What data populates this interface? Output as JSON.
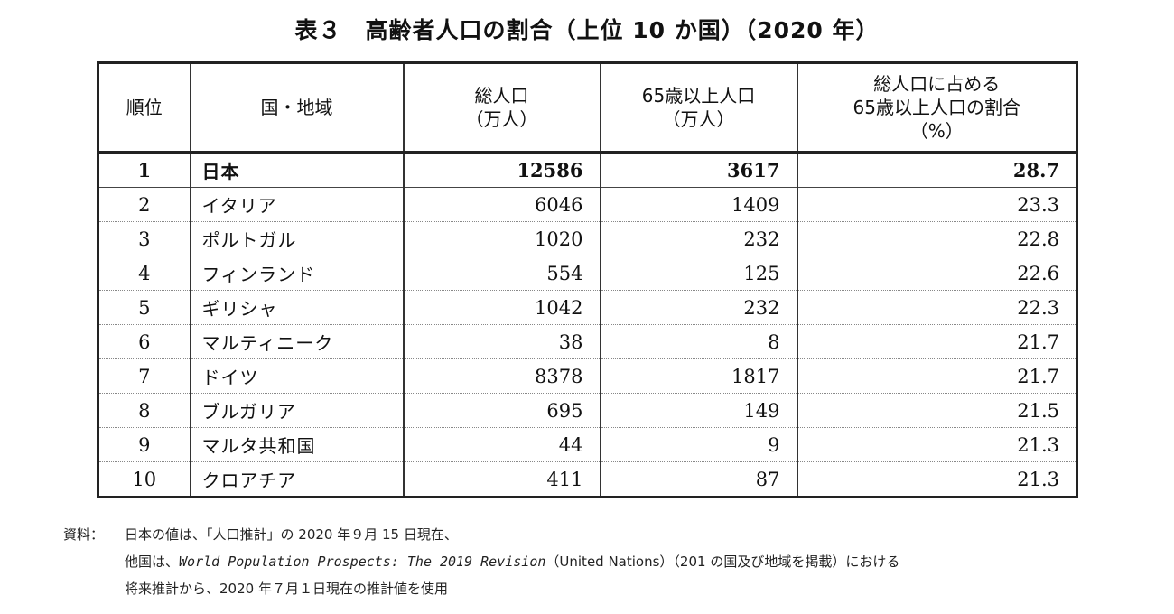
{
  "title": "表３　高齢者人口の割合（上位 10 か国）（2020 年）",
  "table": {
    "headers": {
      "rank": "順位",
      "country": "国・地域",
      "total_line1": "総人口",
      "total_line2": "（万人）",
      "elderly_line1": "65歳以上人口",
      "elderly_line2": "（万人）",
      "share_line1": "総人口に占める",
      "share_line2": "65歳以上人口の割合",
      "share_line3": "（%）"
    },
    "rows": [
      {
        "rank": "1",
        "country": "日本",
        "total": "12586",
        "elderly": "3617",
        "share": "28.7"
      },
      {
        "rank": "2",
        "country": "イタリア",
        "total": "6046",
        "elderly": "1409",
        "share": "23.3"
      },
      {
        "rank": "3",
        "country": "ポルトガル",
        "total": "1020",
        "elderly": "232",
        "share": "22.8"
      },
      {
        "rank": "4",
        "country": "フィンランド",
        "total": "554",
        "elderly": "125",
        "share": "22.6"
      },
      {
        "rank": "5",
        "country": "ギリシャ",
        "total": "1042",
        "elderly": "232",
        "share": "22.3"
      },
      {
        "rank": "6",
        "country": "マルティニーク",
        "total": "38",
        "elderly": "8",
        "share": "21.7"
      },
      {
        "rank": "7",
        "country": "ドイツ",
        "total": "8378",
        "elderly": "1817",
        "share": "21.7"
      },
      {
        "rank": "8",
        "country": "ブルガリア",
        "total": "695",
        "elderly": "149",
        "share": "21.5"
      },
      {
        "rank": "9",
        "country": "マルタ共和国",
        "total": "44",
        "elderly": "9",
        "share": "21.3"
      },
      {
        "rank": "10",
        "country": "クロアチア",
        "total": "411",
        "elderly": "87",
        "share": "21.3"
      }
    ]
  },
  "source": {
    "label": "資料：",
    "line1": "日本の値は、「人口推計」の 2020 年９月 15 日現在、",
    "line2_prefix": "他国は、",
    "line2_italic": "World Population Prospects: The 2019 Revision",
    "line2_suffix": "（United Nations）（201 の国及び地域を掲載）における",
    "line3": "将来推計から、2020 年７月１日現在の推計値を使用"
  }
}
